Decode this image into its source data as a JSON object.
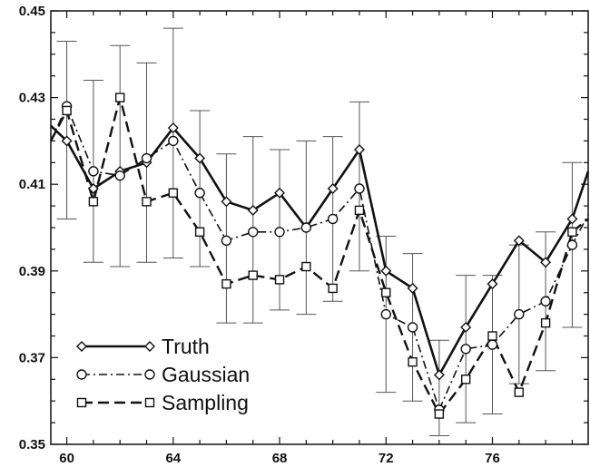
{
  "chart_data": {
    "type": "line",
    "title": "",
    "xlabel": "",
    "ylabel": "",
    "xlim": [
      59.4,
      79.6
    ],
    "ylim": [
      0.35,
      0.45
    ],
    "x_ticks": [
      60,
      64,
      68,
      72,
      76
    ],
    "y_ticks": [
      0.35,
      0.37,
      0.39,
      0.41,
      0.43,
      0.45
    ],
    "x_tick_labels": [
      "60",
      "64",
      "68",
      "72",
      "76"
    ],
    "y_tick_labels": [
      "0.35",
      "0.37",
      "0.39",
      "0.41",
      "0.43",
      "0.45"
    ],
    "grid": false,
    "legend": "bottom-left",
    "x": [
      60,
      61,
      62,
      63,
      64,
      65,
      66,
      67,
      68,
      69,
      70,
      71,
      72,
      73,
      74,
      75,
      76,
      77,
      78,
      79
    ],
    "series": [
      {
        "name": "Truth",
        "style": "solid",
        "marker": "diamond",
        "values": [
          0.42,
          0.409,
          0.413,
          0.415,
          0.423,
          0.416,
          0.406,
          0.404,
          0.408,
          0.4,
          0.409,
          0.418,
          0.39,
          0.386,
          0.366,
          0.377,
          0.387,
          0.397,
          0.392,
          0.402
        ],
        "line_start": [
          59.4,
          0.4235
        ],
        "line_end": [
          79.6,
          0.413
        ]
      },
      {
        "name": "Gaussian",
        "style": "dash-dot",
        "marker": "circle",
        "values": [
          0.428,
          0.413,
          0.412,
          0.416,
          0.42,
          0.408,
          0.397,
          0.399,
          0.399,
          0.4,
          0.402,
          0.409,
          0.38,
          0.377,
          0.358,
          0.372,
          0.373,
          0.38,
          0.383,
          0.396
        ],
        "line_start": [
          59.4,
          0.42
        ],
        "line_end": [
          79.6,
          0.403
        ]
      },
      {
        "name": "Sampling",
        "style": "dashed",
        "marker": "square",
        "values": [
          0.427,
          0.406,
          0.43,
          0.406,
          0.408,
          0.399,
          0.387,
          0.389,
          0.388,
          0.391,
          0.386,
          0.404,
          0.385,
          0.369,
          0.357,
          0.365,
          0.375,
          0.362,
          0.378,
          0.399
        ],
        "line_start": [
          59.4,
          0.42
        ],
        "line_end": [
          79.6,
          0.402
        ]
      }
    ],
    "error_bars": [
      {
        "x": 60,
        "low": 0.402,
        "high": 0.443
      },
      {
        "x": 61,
        "low": 0.392,
        "high": 0.434
      },
      {
        "x": 62,
        "low": 0.391,
        "high": 0.442
      },
      {
        "x": 63,
        "low": 0.392,
        "high": 0.438
      },
      {
        "x": 64,
        "low": 0.393,
        "high": 0.446
      },
      {
        "x": 65,
        "low": 0.391,
        "high": 0.427
      },
      {
        "x": 66,
        "low": 0.378,
        "high": 0.417
      },
      {
        "x": 67,
        "low": 0.378,
        "high": 0.421
      },
      {
        "x": 68,
        "low": 0.381,
        "high": 0.418
      },
      {
        "x": 69,
        "low": 0.38,
        "high": 0.42
      },
      {
        "x": 70,
        "low": 0.383,
        "high": 0.421
      },
      {
        "x": 71,
        "low": 0.39,
        "high": 0.429
      },
      {
        "x": 72,
        "low": 0.362,
        "high": 0.398
      },
      {
        "x": 73,
        "low": 0.36,
        "high": 0.394
      },
      {
        "x": 74,
        "low": 0.352,
        "high": 0.374
      },
      {
        "x": 75,
        "low": 0.355,
        "high": 0.389
      },
      {
        "x": 76,
        "low": 0.357,
        "high": 0.389
      },
      {
        "x": 77,
        "low": 0.364,
        "high": 0.396
      },
      {
        "x": 78,
        "low": 0.367,
        "high": 0.399
      },
      {
        "x": 79,
        "low": 0.377,
        "high": 0.415
      }
    ],
    "colors": {
      "line": "#111111",
      "error_bar": "#555555",
      "background": "#ffffff"
    }
  }
}
